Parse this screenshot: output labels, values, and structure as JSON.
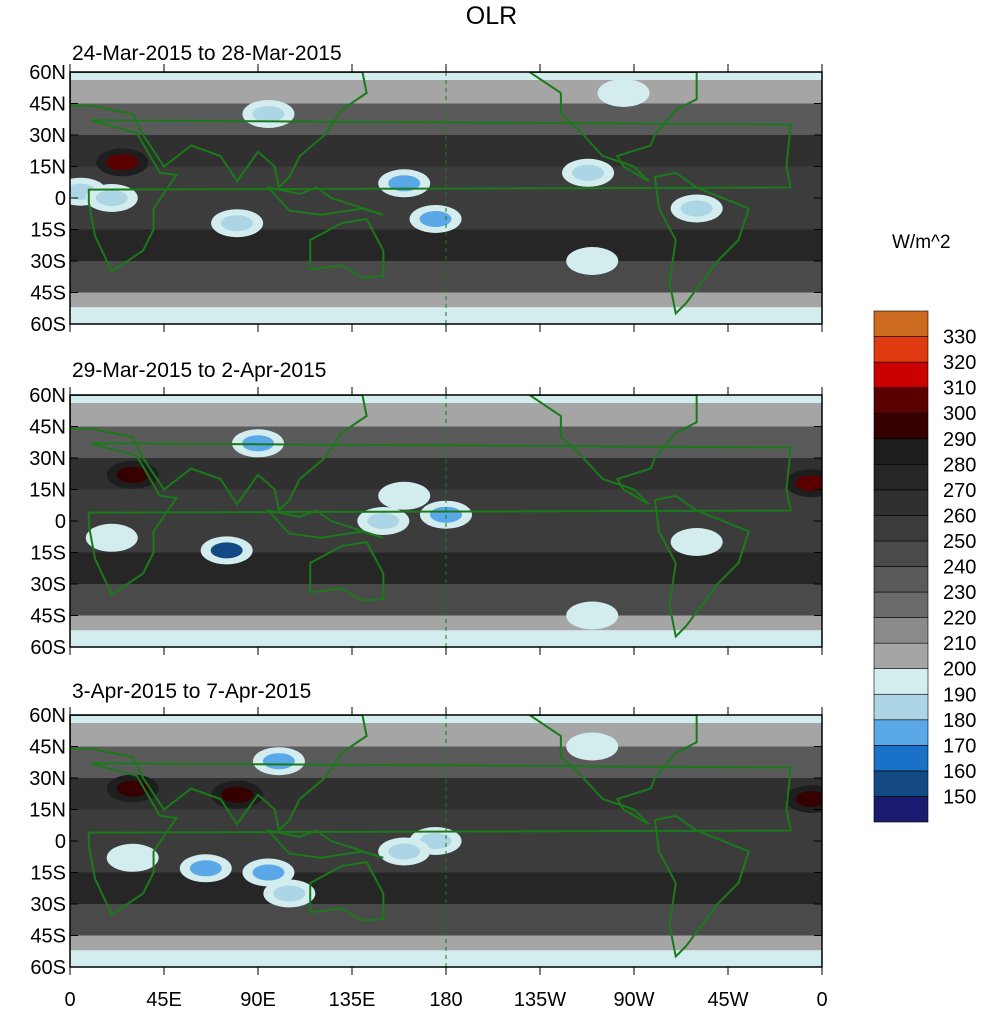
{
  "title": "OLR",
  "units": "W/m^2",
  "chart_data": {
    "type": "heatmap",
    "title": "OLR",
    "lon_range": [
      0,
      360
    ],
    "lat_range": [
      -60,
      60
    ],
    "lat_ticks": [
      "60N",
      "45N",
      "30N",
      "15N",
      "0",
      "15S",
      "30S",
      "45S",
      "60S"
    ],
    "lat_tick_values": [
      60,
      45,
      30,
      15,
      0,
      -15,
      -30,
      -45,
      -60
    ],
    "lon_ticks": [
      "0",
      "45E",
      "90E",
      "135E",
      "180",
      "135W",
      "90W",
      "45W",
      "0"
    ],
    "lon_tick_values": [
      0,
      45,
      90,
      135,
      180,
      225,
      270,
      315,
      360
    ],
    "colorbar": {
      "label": "W/m^2",
      "levels": [
        150,
        160,
        170,
        180,
        190,
        200,
        210,
        220,
        230,
        240,
        250,
        260,
        270,
        280,
        290,
        300,
        310,
        320,
        330
      ],
      "colors": [
        "#1a1a6e",
        "#134a85",
        "#1a72c8",
        "#5aa8e8",
        "#acd6e6",
        "#d3ecee",
        "#a5a5a5",
        "#8a8a8a",
        "#6a6a6a",
        "#5a5a5a",
        "#4a4a4a",
        "#3c3c3c",
        "#303030",
        "#262626",
        "#1e1e1e",
        "#360000",
        "#5a0000",
        "#cc0000",
        "#e03a10",
        "#cc6a20"
      ]
    },
    "panels": [
      {
        "subtitle": "24-Mar-2015 to 28-Mar-2015",
        "features": [
          [
            25,
            17,
            300
          ],
          [
            5,
            3,
            180
          ],
          [
            20,
            0,
            185
          ],
          [
            80,
            -12,
            180
          ],
          [
            160,
            7,
            170
          ],
          [
            175,
            -10,
            175
          ],
          [
            248,
            12,
            180
          ],
          [
            250,
            -30,
            190
          ],
          [
            300,
            -5,
            185
          ],
          [
            95,
            40,
            185
          ],
          [
            265,
            50,
            195
          ]
        ]
      },
      {
        "subtitle": "29-Mar-2015 to 2-Apr-2015",
        "features": [
          [
            30,
            22,
            295
          ],
          [
            355,
            18,
            300
          ],
          [
            75,
            -14,
            150
          ],
          [
            90,
            37,
            170
          ],
          [
            180,
            3,
            170
          ],
          [
            150,
            0,
            180
          ],
          [
            160,
            12,
            190
          ],
          [
            20,
            -8,
            190
          ],
          [
            300,
            -10,
            190
          ],
          [
            250,
            -45,
            195
          ]
        ]
      },
      {
        "subtitle": "3-Apr-2015 to 7-Apr-2015",
        "features": [
          [
            30,
            25,
            295
          ],
          [
            80,
            22,
            290
          ],
          [
            355,
            20,
            295
          ],
          [
            65,
            -13,
            170
          ],
          [
            95,
            -15,
            170
          ],
          [
            105,
            -25,
            180
          ],
          [
            100,
            38,
            175
          ],
          [
            175,
            0,
            180
          ],
          [
            160,
            -5,
            185
          ],
          [
            30,
            -8,
            190
          ],
          [
            250,
            45,
            195
          ]
        ]
      }
    ]
  }
}
